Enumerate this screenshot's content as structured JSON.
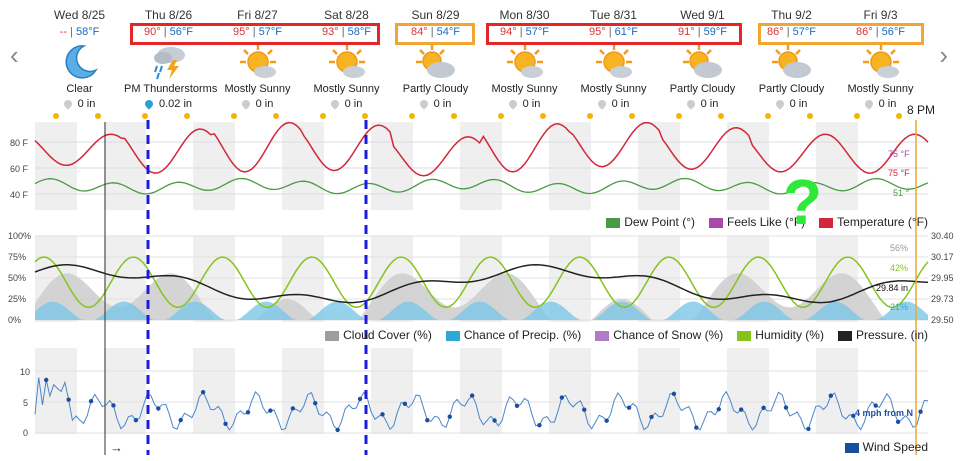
{
  "nav": {
    "prev": "‹",
    "next": "›"
  },
  "days": [
    {
      "date": "Wed 8/25",
      "hi": "--",
      "lo": "58°F",
      "cond": "Clear",
      "precip": "0 in",
      "icon": "moon-icon",
      "wet": false
    },
    {
      "date": "Thu 8/26",
      "hi": "90°",
      "lo": "56°F",
      "cond": "PM Thunderstorms",
      "precip": "0.02 in",
      "icon": "thunderstorm-icon",
      "wet": true
    },
    {
      "date": "Fri 8/27",
      "hi": "95°",
      "lo": "57°F",
      "cond": "Mostly Sunny",
      "precip": "0 in",
      "icon": "mostly-sunny-icon",
      "wet": false
    },
    {
      "date": "Sat 8/28",
      "hi": "93°",
      "lo": "58°F",
      "cond": "Mostly Sunny",
      "precip": "0 in",
      "icon": "mostly-sunny-icon",
      "wet": false
    },
    {
      "date": "Sun 8/29",
      "hi": "84°",
      "lo": "54°F",
      "cond": "Partly Cloudy",
      "precip": "0 in",
      "icon": "partly-cloudy-icon",
      "wet": false
    },
    {
      "date": "Mon 8/30",
      "hi": "94°",
      "lo": "57°F",
      "cond": "Mostly Sunny",
      "precip": "0 in",
      "icon": "mostly-sunny-icon",
      "wet": false
    },
    {
      "date": "Tue 8/31",
      "hi": "95°",
      "lo": "61°F",
      "cond": "Mostly Sunny",
      "precip": "0 in",
      "icon": "mostly-sunny-icon",
      "wet": false
    },
    {
      "date": "Wed 9/1",
      "hi": "91°",
      "lo": "59°F",
      "cond": "Partly Cloudy",
      "precip": "0 in",
      "icon": "partly-cloudy-icon",
      "wet": false
    },
    {
      "date": "Thu 9/2",
      "hi": "86°",
      "lo": "57°F",
      "cond": "Partly Cloudy",
      "precip": "0 in",
      "icon": "partly-cloudy-icon",
      "wet": false
    },
    {
      "date": "Fri 9/3",
      "hi": "86°",
      "lo": "56°F",
      "cond": "Mostly Sunny",
      "precip": "0 in",
      "icon": "mostly-sunny-icon",
      "wet": false
    }
  ],
  "current_time_label": "8 PM",
  "annotation": "?",
  "temp_panel": {
    "yticks": [
      "80 F",
      "60 F",
      "40 F"
    ],
    "end_labels": {
      "feels_like": "75 °F",
      "temperature": "75 °F",
      "dew_point": "51 °"
    },
    "legend": [
      {
        "label": "Dew Point (°)",
        "color": "#4a9a44"
      },
      {
        "label": "Feels Like (°F)",
        "color": "#a84aa8"
      },
      {
        "label": "Temperature (°F)",
        "color": "#d2263a"
      }
    ]
  },
  "cloud_panel": {
    "yticks_left": [
      "100%",
      "75%",
      "50%",
      "25%",
      "0%"
    ],
    "yticks_right": [
      "30.40",
      "30.17",
      "29.95",
      "29.73",
      "29.50"
    ],
    "end_labels": {
      "cloud": "56%",
      "humidity": "42%",
      "pressure": "29.84 in",
      "precip": "21%"
    },
    "legend": [
      {
        "label": "Cloud Cover (%)",
        "color": "#9e9e9e"
      },
      {
        "label": "Chance of Precip. (%)",
        "color": "#2ea8d8"
      },
      {
        "label": "Chance of Snow (%)",
        "color": "#b07cc6"
      },
      {
        "label": "Humidity (%)",
        "color": "#86c31c"
      },
      {
        "label": "Pressure. (in)",
        "color": "#222222"
      }
    ]
  },
  "wind_panel": {
    "yticks": [
      "10",
      "5",
      "0"
    ],
    "end_label": "4 mph from N",
    "arrow": "→",
    "legend": [
      {
        "label": "Wind Speed",
        "color": "#1a4fa0"
      }
    ]
  },
  "colors": {
    "red_box": "#e32626",
    "orange_box": "#f2a531",
    "blue_dash": "#1c1ce0",
    "orange_line": "#f2a531"
  }
}
